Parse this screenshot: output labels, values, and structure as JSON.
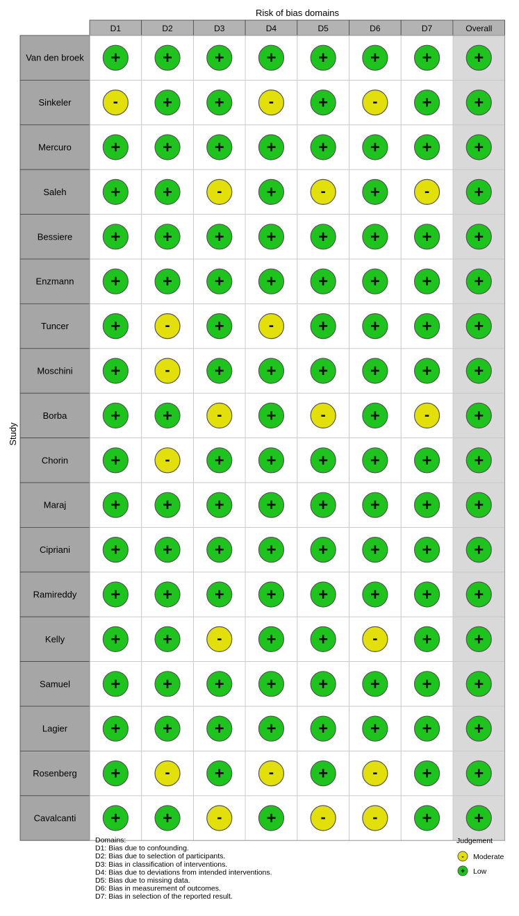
{
  "chart_data": {
    "type": "table",
    "top_label": "Risk of bias domains",
    "y_axis_label": "Study",
    "columns": [
      "D1",
      "D2",
      "D3",
      "D4",
      "D5",
      "D6",
      "D7",
      "Overall"
    ],
    "rows": [
      {
        "study": "Van den broek",
        "values": [
          "low",
          "low",
          "low",
          "low",
          "low",
          "low",
          "low",
          "low"
        ]
      },
      {
        "study": "Sinkeler",
        "values": [
          "moderate",
          "low",
          "low",
          "moderate",
          "low",
          "moderate",
          "low",
          "low"
        ]
      },
      {
        "study": "Mercuro",
        "values": [
          "low",
          "low",
          "low",
          "low",
          "low",
          "low",
          "low",
          "low"
        ]
      },
      {
        "study": "Saleh",
        "values": [
          "low",
          "low",
          "moderate",
          "low",
          "moderate",
          "low",
          "moderate",
          "low"
        ]
      },
      {
        "study": "Bessiere",
        "values": [
          "low",
          "low",
          "low",
          "low",
          "low",
          "low",
          "low",
          "low"
        ]
      },
      {
        "study": "Enzmann",
        "values": [
          "low",
          "low",
          "low",
          "low",
          "low",
          "low",
          "low",
          "low"
        ]
      },
      {
        "study": "Tuncer",
        "values": [
          "low",
          "moderate",
          "low",
          "moderate",
          "low",
          "low",
          "low",
          "low"
        ]
      },
      {
        "study": "Moschini",
        "values": [
          "low",
          "moderate",
          "low",
          "low",
          "low",
          "low",
          "low",
          "low"
        ]
      },
      {
        "study": "Borba",
        "values": [
          "low",
          "low",
          "moderate",
          "low",
          "moderate",
          "low",
          "moderate",
          "low"
        ]
      },
      {
        "study": "Chorin",
        "values": [
          "low",
          "moderate",
          "low",
          "low",
          "low",
          "low",
          "low",
          "low"
        ]
      },
      {
        "study": "Maraj",
        "values": [
          "low",
          "low",
          "low",
          "low",
          "low",
          "low",
          "low",
          "low"
        ]
      },
      {
        "study": "Cipriani",
        "values": [
          "low",
          "low",
          "low",
          "low",
          "low",
          "low",
          "low",
          "low"
        ]
      },
      {
        "study": "Ramireddy",
        "values": [
          "low",
          "low",
          "low",
          "low",
          "low",
          "low",
          "low",
          "low"
        ]
      },
      {
        "study": "Kelly",
        "values": [
          "low",
          "low",
          "moderate",
          "low",
          "low",
          "moderate",
          "low",
          "low"
        ]
      },
      {
        "study": "Samuel",
        "values": [
          "low",
          "low",
          "low",
          "low",
          "low",
          "low",
          "low",
          "low"
        ]
      },
      {
        "study": "Lagier",
        "values": [
          "low",
          "low",
          "low",
          "low",
          "low",
          "low",
          "low",
          "low"
        ]
      },
      {
        "study": "Rosenberg",
        "values": [
          "low",
          "moderate",
          "low",
          "moderate",
          "low",
          "moderate",
          "low",
          "low"
        ]
      },
      {
        "study": "Cavalcanti",
        "values": [
          "low",
          "low",
          "moderate",
          "low",
          "moderate",
          "moderate",
          "low",
          "low"
        ]
      }
    ],
    "judgements": {
      "low": {
        "symbol": "+",
        "label": "Low",
        "color": "#1ec31e"
      },
      "moderate": {
        "symbol": "-",
        "label": "Moderate",
        "color": "#e2df0b"
      }
    },
    "legend": {
      "title": "Judgement",
      "items": [
        "moderate",
        "low"
      ]
    },
    "domains_title": "Domains:",
    "domains": [
      "D1: Bias due to confounding.",
      "D2: Bias due to selection of participants.",
      "D3: Bias in classification of interventions.",
      "D4: Bias due to deviations from intended interventions.",
      "D5: Bias due to missing data.",
      "D6: Bias in measurement of outcomes.",
      "D7: Bias in selection of the reported result."
    ],
    "colors": {
      "header_fill": "#b3b3b3",
      "study_fill": "#a6a6a6",
      "overall_fill": "#d9d9d9",
      "circle_stroke": "#555555"
    }
  }
}
